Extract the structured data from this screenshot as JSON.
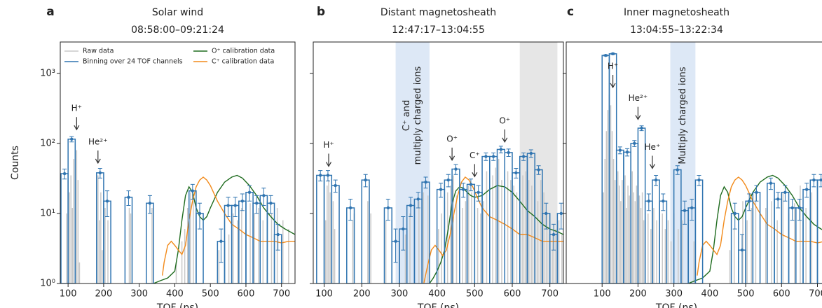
{
  "chart_data": [
    {
      "type": "histogram",
      "panel_label": "a",
      "title": "Solar wind",
      "subtitle": "08:58:00–09:21:24",
      "xlabel": "TOF (ns)",
      "ylabel": "Counts",
      "xlim": [
        78,
        738
      ],
      "ylim": [
        1,
        2800
      ],
      "log_y": true,
      "ytick_labels": true,
      "xticks": [
        100,
        200,
        300,
        400,
        500,
        600,
        700
      ],
      "yticks": [
        {
          "value": 1,
          "label": "10⁰"
        },
        {
          "value": 10,
          "label": "10¹"
        },
        {
          "value": 100,
          "label": "10²"
        },
        {
          "value": 1000,
          "label": "10³"
        }
      ],
      "legend": "upper",
      "bins": [
        80,
        100,
        120,
        140,
        160,
        180,
        200,
        220,
        240,
        260,
        280,
        300,
        320,
        340,
        360,
        380,
        400,
        420,
        440,
        460,
        480,
        500,
        520,
        540,
        560,
        580,
        600,
        620,
        640,
        660,
        680,
        700,
        720,
        740
      ],
      "binned": {
        "name": "Binning over 24 TOF channels",
        "color": "#2f74b0",
        "values": [
          37,
          115,
          null,
          null,
          null,
          38,
          15,
          null,
          null,
          17,
          null,
          null,
          14,
          null,
          null,
          null,
          null,
          null,
          21,
          10,
          null,
          null,
          4,
          13,
          13,
          15,
          20,
          14,
          18,
          14,
          5,
          null,
          null
        ],
        "errors": [
          6,
          10,
          null,
          null,
          null,
          6,
          6,
          null,
          null,
          4,
          null,
          null,
          4,
          null,
          null,
          null,
          null,
          null,
          5,
          4,
          null,
          null,
          2,
          4,
          4,
          4,
          5,
          4,
          5,
          4,
          2,
          null,
          null
        ]
      },
      "raw": {
        "name": "Raw data",
        "color": "#c8c8c8",
        "x": [
          96,
          100,
          104,
          108,
          112,
          116,
          120,
          124,
          128,
          132,
          180,
          184,
          188,
          192,
          196,
          204,
          212,
          272,
          276,
          336,
          404,
          420,
          428,
          436,
          444,
          452,
          460,
          524,
          540,
          552,
          564,
          576,
          588,
          600,
          612,
          624,
          636,
          648,
          660,
          672,
          688,
          704,
          720
        ],
        "values": [
          10,
          30,
          20,
          35,
          12,
          60,
          100,
          80,
          30,
          2,
          25,
          35,
          8,
          20,
          3,
          12,
          8,
          12,
          10,
          12,
          2,
          4,
          6,
          12,
          20,
          15,
          8,
          3,
          8,
          5,
          10,
          8,
          12,
          6,
          14,
          10,
          12,
          8,
          15,
          10,
          12,
          8,
          6
        ]
      },
      "lines": [
        {
          "name": "O⁺ calibration data",
          "color": "#1e6b1e",
          "x": [
            340,
            360,
            380,
            400,
            410,
            420,
            430,
            440,
            450,
            460,
            470,
            480,
            490,
            500,
            520,
            540,
            560,
            575,
            590,
            610,
            630,
            650,
            670,
            690,
            710,
            738
          ],
          "values": [
            1,
            1.1,
            1.2,
            1.5,
            3,
            8,
            18,
            24,
            20,
            12,
            9,
            8,
            9,
            12,
            20,
            28,
            33,
            35,
            32,
            25,
            18,
            12,
            9,
            7,
            6,
            5
          ]
        },
        {
          "name": "C⁺ calibration data",
          "color": "#f28a1a",
          "x": [
            365,
            370,
            380,
            390,
            400,
            410,
            420,
            430,
            440,
            450,
            460,
            470,
            480,
            490,
            500,
            520,
            540,
            560,
            580,
            600,
            620,
            640,
            660,
            680,
            700,
            720,
            738
          ],
          "values": [
            1.3,
            2,
            3.5,
            4,
            3.5,
            3,
            2.6,
            3.5,
            8,
            15,
            24,
            30,
            33,
            30,
            25,
            15,
            10,
            7,
            6,
            5,
            4.5,
            4,
            4,
            4,
            3.8,
            4,
            4
          ]
        }
      ],
      "spans": [],
      "annotations": [
        {
          "text": "H⁺",
          "x": 124,
          "y": 150
        },
        {
          "text": "He²⁺",
          "x": 184,
          "y": 50
        }
      ]
    },
    {
      "type": "histogram",
      "panel_label": "b",
      "title": "Distant magnetosheath",
      "subtitle": "12:47:17–13:04:55",
      "xlabel": "TOF (ns)",
      "xlim": [
        71,
        736
      ],
      "ylim": [
        1,
        2800
      ],
      "log_y": true,
      "ytick_labels": false,
      "xticks": [
        100,
        200,
        300,
        400,
        500,
        600,
        700
      ],
      "yticks": [
        1,
        10,
        100,
        1000
      ],
      "bins": [
        80,
        100,
        120,
        140,
        160,
        180,
        200,
        220,
        240,
        260,
        280,
        300,
        320,
        340,
        360,
        380,
        400,
        420,
        440,
        460,
        480,
        500,
        520,
        540,
        560,
        580,
        600,
        620,
        640,
        660,
        680,
        700,
        720,
        740
      ],
      "binned": {
        "color": "#2f74b0",
        "values": [
          35,
          35,
          25,
          null,
          12,
          null,
          30,
          null,
          null,
          12,
          4,
          6,
          13,
          16,
          28,
          null,
          22,
          30,
          43,
          22,
          26,
          20,
          65,
          65,
          82,
          74,
          38,
          65,
          72,
          42,
          10,
          5,
          10
        ],
        "errors": [
          6,
          6,
          5,
          null,
          4,
          null,
          6,
          null,
          null,
          4,
          2,
          3,
          4,
          4,
          5,
          null,
          5,
          6,
          7,
          5,
          5,
          5,
          8,
          8,
          9,
          9,
          6,
          8,
          9,
          6,
          4,
          2,
          4
        ]
      },
      "raw": {
        "color": "#c8c8c8",
        "x": [
          104,
          108,
          112,
          116,
          120,
          124,
          128,
          176,
          180,
          216,
          220,
          224,
          264,
          300,
          316,
          328,
          340,
          352,
          364,
          376,
          404,
          412,
          420,
          428,
          436,
          444,
          452,
          460,
          468,
          476,
          484,
          492,
          500,
          508,
          516,
          524,
          532,
          540,
          548,
          556,
          564,
          572,
          580,
          588,
          596,
          604,
          612,
          620,
          628,
          636,
          644,
          652,
          660,
          668,
          676,
          684,
          692,
          700,
          708,
          716,
          724,
          732
        ],
        "values": [
          8,
          25,
          30,
          20,
          12,
          15,
          6,
          8,
          10,
          15,
          25,
          10,
          8,
          3,
          5,
          10,
          12,
          15,
          20,
          18,
          6,
          10,
          15,
          20,
          25,
          35,
          18,
          20,
          12,
          15,
          25,
          20,
          18,
          12,
          10,
          15,
          40,
          50,
          35,
          45,
          60,
          30,
          55,
          40,
          30,
          25,
          20,
          15,
          35,
          40,
          30,
          25,
          20,
          15,
          30,
          20,
          10,
          8,
          5,
          6,
          8,
          5
        ]
      },
      "lines": [
        {
          "color": "#1e6b1e",
          "x": [
            380,
            390,
            400,
            410,
            420,
            430,
            440,
            450,
            460,
            470,
            480,
            490,
            500,
            520,
            540,
            560,
            580,
            600,
            620,
            640,
            660,
            680,
            700,
            720,
            736
          ],
          "values": [
            1,
            1.2,
            1.5,
            2,
            3,
            6,
            14,
            21,
            24,
            23,
            20,
            18,
            17,
            18,
            22,
            25,
            24,
            20,
            15,
            11,
            9,
            7,
            6,
            5.5,
            5
          ]
        },
        {
          "color": "#f28a1a",
          "x": [
            365,
            375,
            385,
            395,
            405,
            415,
            425,
            435,
            445,
            455,
            465,
            475,
            485,
            495,
            505,
            520,
            540,
            560,
            580,
            600,
            620,
            640,
            660,
            680,
            700,
            720,
            736
          ],
          "values": [
            1,
            1.8,
            3,
            3.5,
            3,
            2.5,
            3,
            5,
            10,
            18,
            28,
            33,
            30,
            24,
            18,
            12,
            9,
            8,
            7,
            6,
            5,
            5,
            4.5,
            4,
            4,
            4,
            4
          ]
        }
      ],
      "spans": [
        {
          "x": [
            290,
            380
          ],
          "color": "#dde8f6",
          "label": [
            "C⁺ and",
            "multiply charged ions"
          ]
        },
        {
          "x": [
            620,
            720
          ],
          "color": "#e6e6e6"
        }
      ],
      "annotations": [
        {
          "text": "H⁺",
          "x": 112,
          "y": 45
        },
        {
          "text": "O⁺",
          "x": 440,
          "y": 55
        },
        {
          "text": "C⁺",
          "x": 500,
          "y": 32
        },
        {
          "text": "O⁺",
          "x": 580,
          "y": 100
        }
      ]
    },
    {
      "type": "histogram",
      "panel_label": "c",
      "title": "Inner magnetosheath",
      "subtitle": "13:04:55–13:22:34",
      "xlabel": "TOF (ns)",
      "xlim": [
        0,
        740
      ],
      "ylim": [
        1,
        2800
      ],
      "log_y": true,
      "ytick_labels": false,
      "xticks": [
        100,
        200,
        300,
        400,
        500,
        600,
        700
      ],
      "yticks": [
        1,
        10,
        100,
        1000
      ],
      "bins": [
        80,
        100,
        120,
        140,
        160,
        180,
        200,
        220,
        240,
        260,
        280,
        300,
        320,
        340,
        360,
        380,
        400,
        420,
        440,
        460,
        480,
        500,
        520,
        540,
        560,
        580,
        600,
        620,
        640,
        660,
        680,
        700,
        720,
        740
      ],
      "binned": {
        "color": "#2f74b0",
        "values": [
          null,
          1800,
          1900,
          80,
          75,
          100,
          165,
          15,
          30,
          15,
          null,
          42,
          11,
          12,
          30,
          null,
          null,
          null,
          null,
          10,
          3,
          15,
          20,
          null,
          27,
          16,
          20,
          12,
          12,
          22,
          30,
          30,
          15
        ],
        "errors": [
          null,
          40,
          45,
          9,
          9,
          10,
          13,
          4,
          5,
          4,
          null,
          6,
          4,
          4,
          5,
          null,
          null,
          null,
          null,
          4,
          2,
          4,
          5,
          null,
          5,
          4,
          5,
          4,
          4,
          5,
          6,
          6,
          4
        ]
      },
      "raw": {
        "color": "#c8c8c8",
        "x": [
          104,
          108,
          112,
          116,
          120,
          124,
          128,
          132,
          136,
          140,
          144,
          148,
          152,
          156,
          160,
          164,
          168,
          172,
          176,
          180,
          184,
          188,
          192,
          196,
          200,
          204,
          208,
          212,
          216,
          220,
          228,
          236,
          244,
          252,
          260,
          268,
          276,
          284,
          292,
          300,
          312,
          324,
          340,
          356,
          456,
          468,
          480,
          492,
          504,
          516,
          528,
          540,
          556,
          572,
          588,
          604,
          620,
          636,
          652,
          668,
          684,
          700
        ],
        "values": [
          20,
          60,
          150,
          300,
          500,
          350,
          150,
          60,
          30,
          20,
          40,
          25,
          15,
          30,
          20,
          35,
          12,
          25,
          18,
          30,
          40,
          20,
          15,
          25,
          35,
          18,
          12,
          20,
          8,
          15,
          10,
          6,
          12,
          8,
          5,
          10,
          6,
          8,
          4,
          10,
          6,
          8,
          5,
          4,
          3,
          6,
          10,
          15,
          8,
          12,
          20,
          10,
          12,
          15,
          8,
          20,
          10,
          14,
          25,
          12,
          20,
          8
        ]
      },
      "lines": [
        {
          "color": "#1e6b1e",
          "x": [
            340,
            360,
            380,
            400,
            410,
            420,
            430,
            440,
            450,
            460,
            470,
            480,
            490,
            500,
            520,
            540,
            560,
            575,
            590,
            610,
            630,
            650,
            670,
            690,
            710,
            738
          ],
          "values": [
            1,
            1.1,
            1.2,
            1.5,
            3,
            8,
            18,
            24,
            20,
            12,
            9,
            8,
            9,
            12,
            20,
            28,
            33,
            35,
            32,
            25,
            18,
            12,
            9,
            7,
            6,
            5
          ]
        },
        {
          "color": "#f28a1a",
          "x": [
            365,
            370,
            380,
            390,
            400,
            410,
            420,
            430,
            440,
            450,
            460,
            470,
            480,
            490,
            500,
            520,
            540,
            560,
            580,
            600,
            620,
            640,
            660,
            680,
            700,
            720,
            738
          ],
          "values": [
            1.3,
            2,
            3.5,
            4,
            3.5,
            3,
            2.6,
            3.5,
            8,
            15,
            24,
            30,
            33,
            30,
            25,
            15,
            10,
            7,
            6,
            5,
            4.5,
            4,
            4,
            4,
            3.8,
            4,
            4
          ]
        }
      ],
      "spans": [
        {
          "x": [
            290,
            360
          ],
          "color": "#dde8f6",
          "label": [
            "Multiply charged ions"
          ]
        }
      ],
      "annotations": [
        {
          "text": "H⁺",
          "x": 130,
          "y": 600
        },
        {
          "text": "He²⁺",
          "x": 200,
          "y": 210
        },
        {
          "text": "He⁺",
          "x": 240,
          "y": 42
        }
      ]
    }
  ]
}
